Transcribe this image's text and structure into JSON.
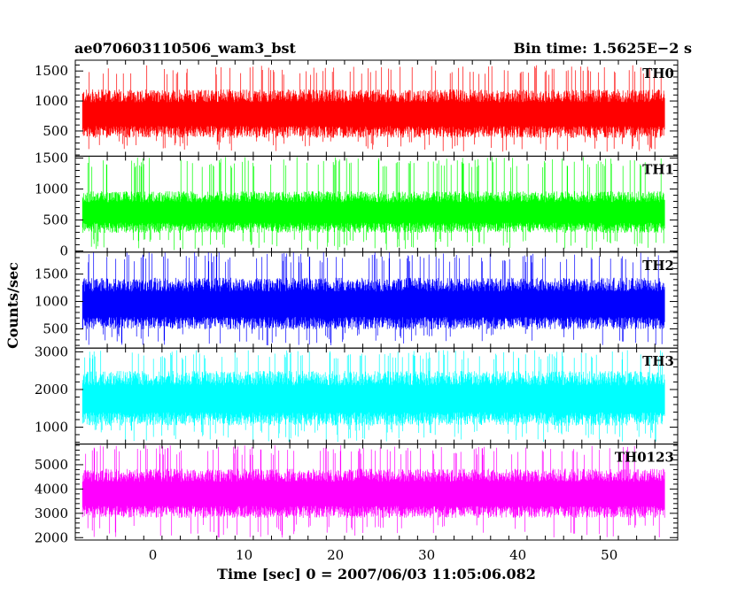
{
  "header": {
    "title": "ae070603110506_wam3_bst",
    "bin_time": "Bin time: 1.5625E−2 s"
  },
  "chart_data": {
    "type": "line",
    "title": "ae070603110506_wam3_bst",
    "xlabel": "Time [sec] 0 = 2007/06/03 11:05:06.082",
    "ylabel": "Counts/sec",
    "xlim": [
      -8.5,
      57.5
    ],
    "x_range": [
      -7.7,
      56.1
    ],
    "x_ticks": [
      "0",
      "10",
      "20",
      "30",
      "40",
      "50"
    ],
    "panels": [
      {
        "name": "TH0",
        "color": "#ff0000",
        "ylim": [
          80,
          1680
        ],
        "baseline": 780,
        "noise": 360,
        "spike_max": 1600,
        "dip_min": 150,
        "y_ticks": [
          "500",
          "1000",
          "1500"
        ]
      },
      {
        "name": "TH1",
        "color": "#00ff00",
        "ylim": [
          -20,
          1530
        ],
        "baseline": 620,
        "noise": 300,
        "spike_max": 1520,
        "dip_min": 10,
        "y_ticks": [
          "0",
          "500",
          "1000",
          "1500"
        ]
      },
      {
        "name": "TH2",
        "color": "#0000ff",
        "ylim": [
          150,
          1900
        ],
        "baseline": 950,
        "noise": 420,
        "spike_max": 1900,
        "dip_min": 200,
        "y_ticks": [
          "500",
          "1000",
          "1500"
        ]
      },
      {
        "name": "TH3",
        "color": "#00ffff",
        "ylim": [
          550,
          3100
        ],
        "baseline": 1750,
        "noise": 650,
        "spike_max": 3050,
        "dip_min": 600,
        "y_ticks": [
          "1000",
          "2000",
          "3000"
        ]
      },
      {
        "name": "TH0123",
        "color": "#ff00ff",
        "ylim": [
          1900,
          5850
        ],
        "baseline": 3800,
        "noise": 900,
        "spike_max": 5800,
        "dip_min": 2000,
        "y_ticks": [
          "2000",
          "3000",
          "4000",
          "5000"
        ]
      }
    ]
  }
}
